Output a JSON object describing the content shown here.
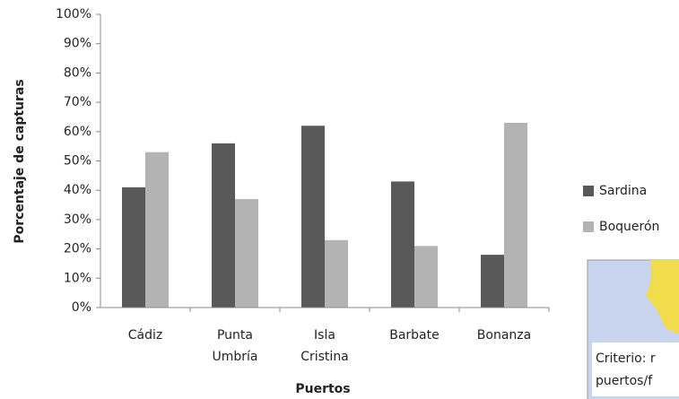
{
  "chart_data": {
    "type": "bar",
    "y_label": "Porcentaje de capturas",
    "x_label": "Puertos",
    "categories": [
      "Cádiz",
      "Punta Umbría",
      "Isla Cristina",
      "Barbate",
      "Bonanza"
    ],
    "series": [
      {
        "name": "Sardina",
        "color": "#595959",
        "values": [
          41,
          56,
          62,
          43,
          18
        ]
      },
      {
        "name": "Boquerón",
        "color": "#b3b3b3",
        "values": [
          53,
          37,
          23,
          21,
          63
        ]
      }
    ],
    "ylim": [
      0,
      100
    ],
    "yticks": [
      {
        "value": 0,
        "label": "0%"
      },
      {
        "value": 10,
        "label": "10%"
      },
      {
        "value": 20,
        "label": "20%"
      },
      {
        "value": 30,
        "label": "30%"
      },
      {
        "value": 40,
        "label": "40%"
      },
      {
        "value": 50,
        "label": "50%"
      },
      {
        "value": 60,
        "label": "60%"
      },
      {
        "value": 70,
        "label": "70%"
      },
      {
        "value": 80,
        "label": "80%"
      },
      {
        "value": 90,
        "label": "90%"
      },
      {
        "value": 100,
        "label": "100%"
      }
    ],
    "grid": false,
    "legend": "right"
  },
  "inset": {
    "lines": [
      "Criterio: r",
      "puertos/f"
    ]
  }
}
